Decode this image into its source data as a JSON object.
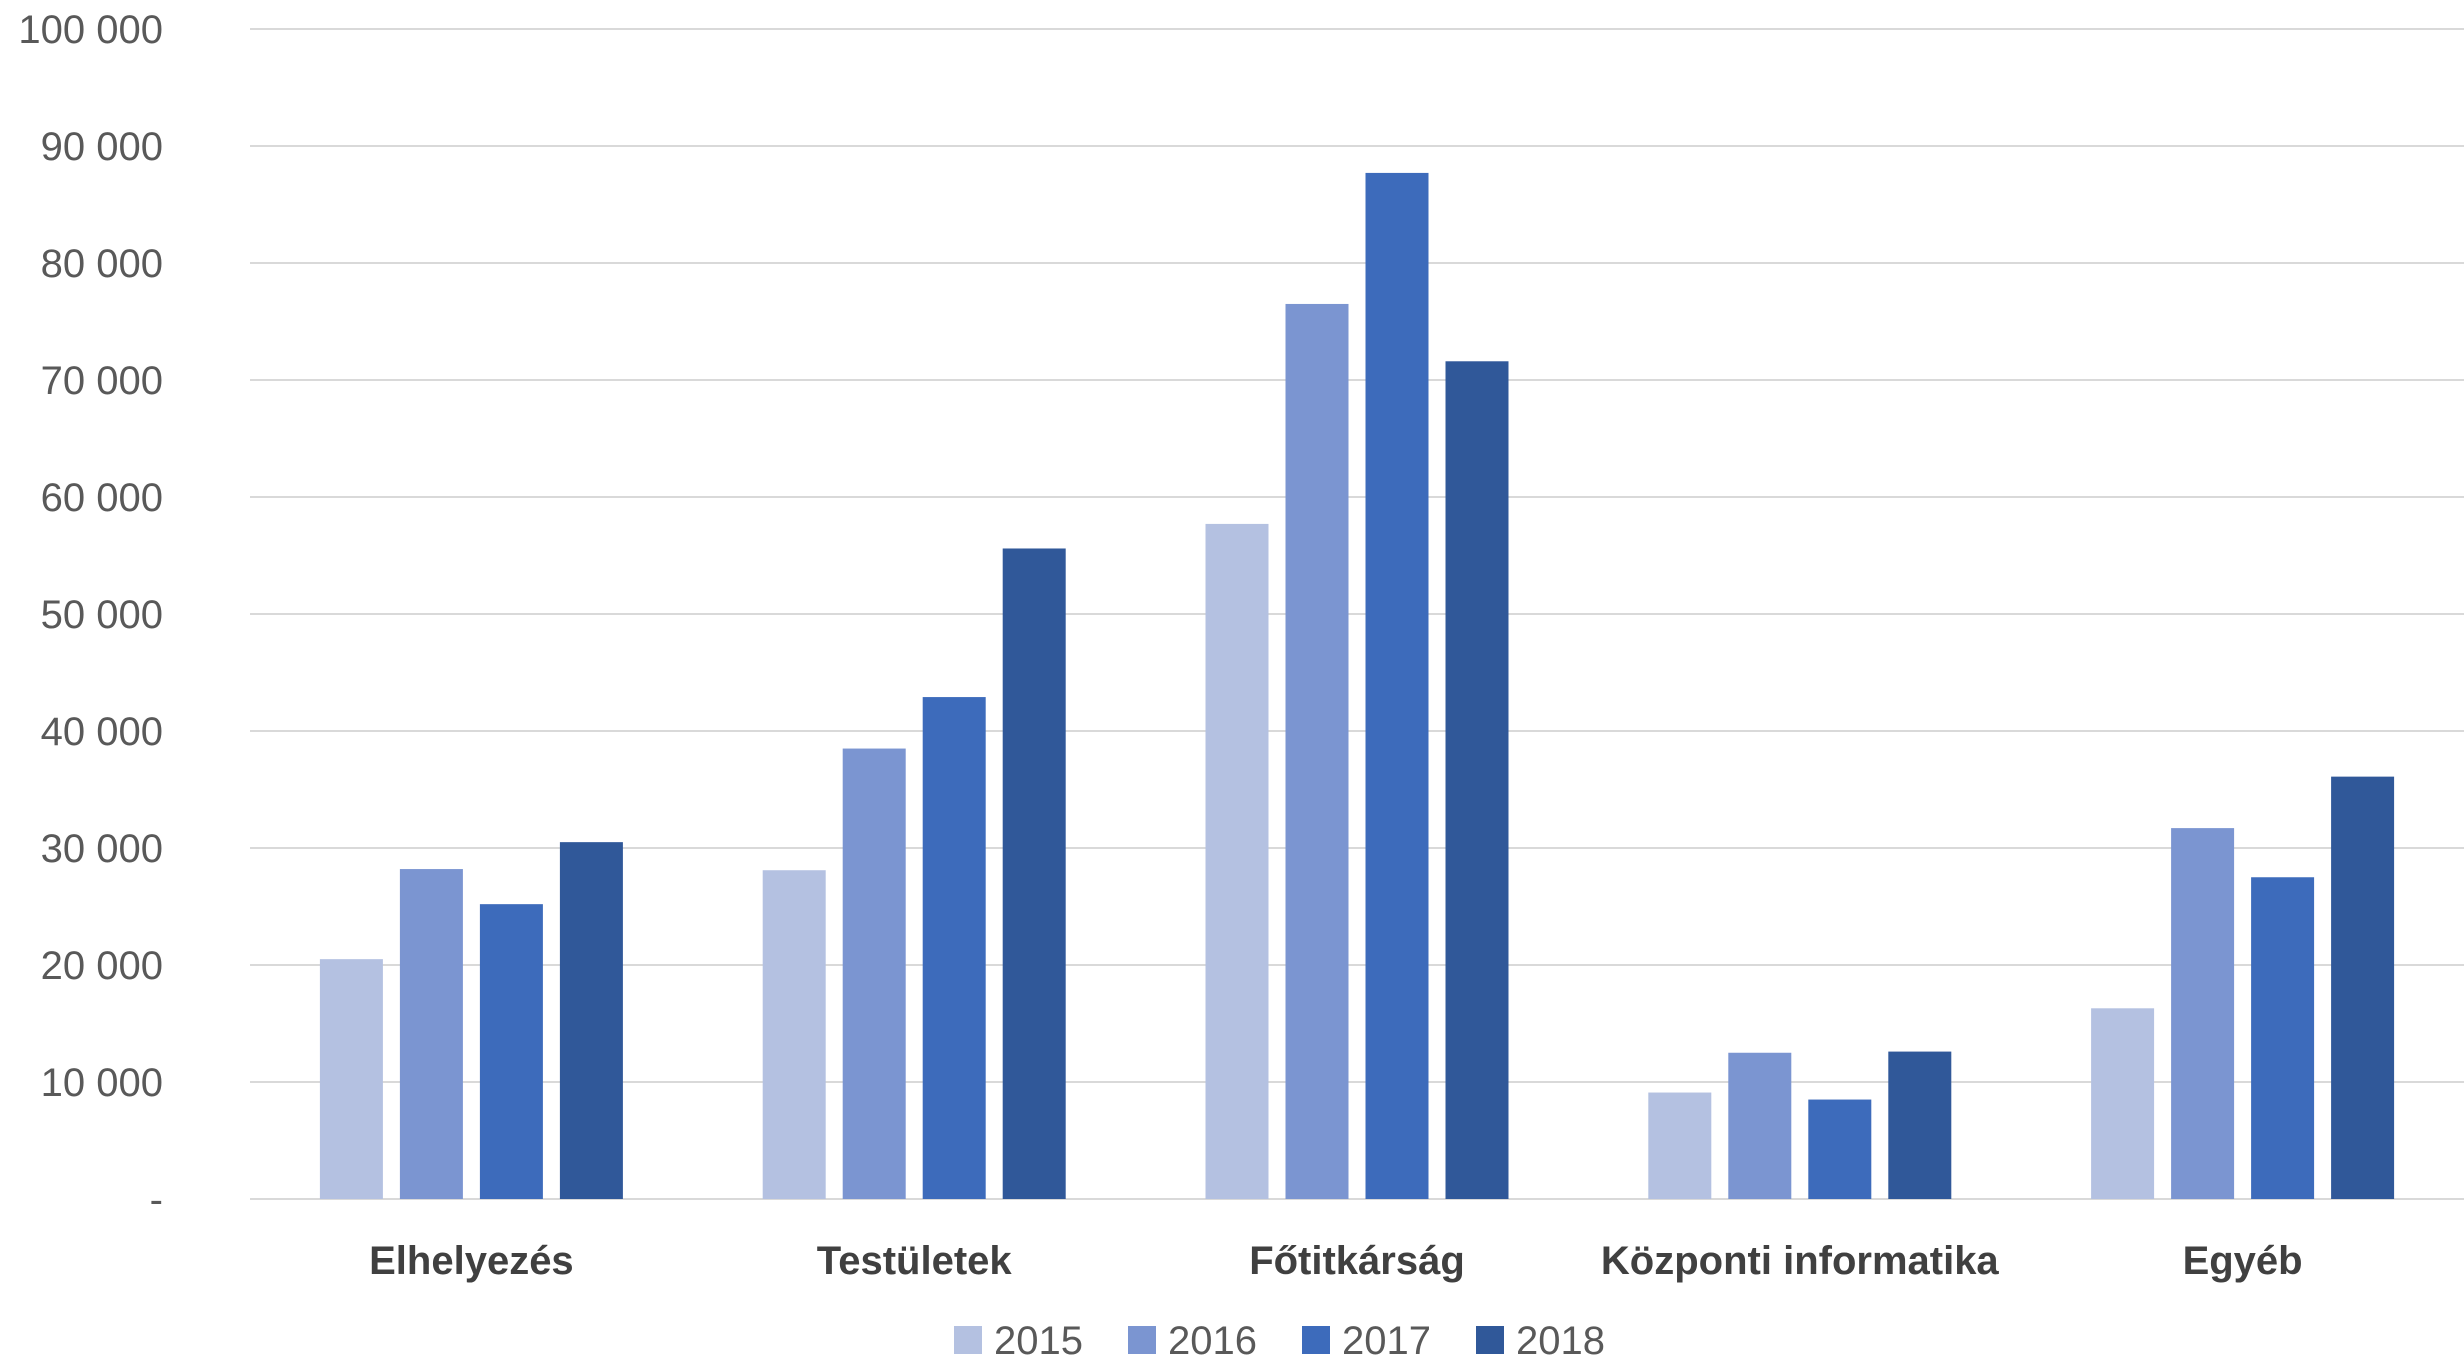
{
  "chart_data": {
    "type": "bar",
    "title": "",
    "xlabel": "",
    "ylabel": "",
    "categories": [
      "Elhelyezés",
      "Testületek",
      "Főtitkárság",
      "Központi informatika",
      "Egyéb"
    ],
    "series": [
      {
        "name": "2015",
        "color": "#b4c1e1",
        "values": [
          20500,
          28100,
          57700,
          9100,
          16300
        ]
      },
      {
        "name": "2016",
        "color": "#7b95d1",
        "values": [
          28200,
          38500,
          76500,
          12500,
          31700
        ]
      },
      {
        "name": "2017",
        "color": "#3d6bbb",
        "values": [
          25200,
          42900,
          87700,
          8500,
          27500
        ]
      },
      {
        "name": "2018",
        "color": "#305899",
        "values": [
          30500,
          55600,
          71600,
          12600,
          36100
        ]
      }
    ],
    "ylim": [
      0,
      100000
    ],
    "yticks": [
      0,
      10000,
      20000,
      30000,
      40000,
      50000,
      60000,
      70000,
      80000,
      90000,
      100000
    ],
    "ytick_labels": [
      "-",
      "10 000",
      "20 000",
      "30 000",
      "40 000",
      "50 000",
      "60 000",
      "70 000",
      "80 000",
      "90 000",
      "100 000"
    ],
    "grid": true,
    "legend_position": "bottom"
  }
}
